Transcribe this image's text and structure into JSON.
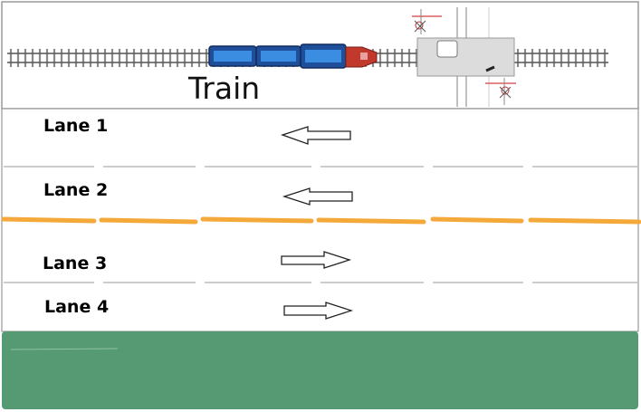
{
  "train_label": "Train",
  "lanes": [
    {
      "label": "Lane 1",
      "direction": "left"
    },
    {
      "label": "Lane 2",
      "direction": "left"
    },
    {
      "label": "Lane 3",
      "direction": "right"
    },
    {
      "label": "Lane 4",
      "direction": "right"
    }
  ],
  "colors": {
    "center_line": "#f4a93a",
    "grass": "#559a73",
    "train_body": "#1f5fb3",
    "train_window": "#3a8de0",
    "locomotive": "#c0392b",
    "lane_line": "#cccccc",
    "border": "#9a9a9a"
  },
  "icons": [
    "railway-track",
    "train",
    "level-crossing",
    "crossing-signal",
    "arrow-left",
    "arrow-right"
  ]
}
